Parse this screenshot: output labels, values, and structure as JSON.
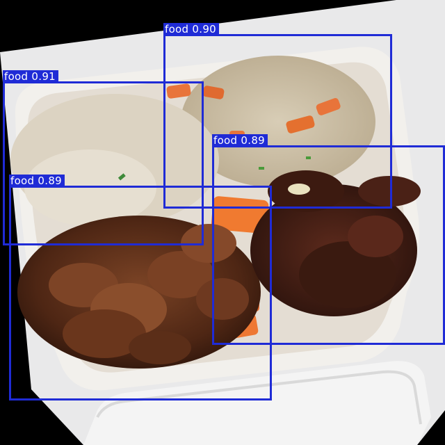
{
  "detections": [
    {
      "text": "food 0.90",
      "class_name": "food",
      "confidence": 0.9
    },
    {
      "text": "food 0.91",
      "class_name": "food",
      "confidence": 0.91
    },
    {
      "text": "food 0.89",
      "class_name": "food",
      "confidence": 0.89
    },
    {
      "text": "food 0.89",
      "class_name": "food",
      "confidence": 0.89
    }
  ],
  "colors": {
    "box": "#1f2bd6",
    "label_text": "#ffffff",
    "background": "#000000"
  }
}
